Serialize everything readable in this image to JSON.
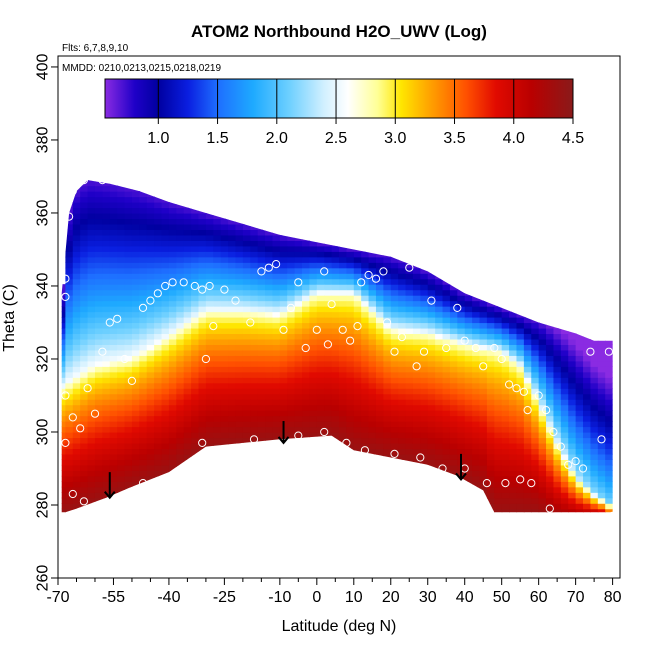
{
  "chart_data": {
    "type": "heatmap",
    "title": "ATOM2 Northbound H2O_UWV (Log)",
    "flights_label": "Flts: 6,7,8,9,10",
    "dates_label": "MMDD: 0210,0213,0215,0218,0219",
    "xlabel": "Latitude (deg N)",
    "ylabel": "Theta (C)",
    "xlim": [
      -70,
      82
    ],
    "ylim": [
      260,
      403
    ],
    "xticks": [
      -70,
      -55,
      -40,
      -25,
      -10,
      0,
      10,
      20,
      30,
      40,
      50,
      60,
      70,
      80
    ],
    "xtick_labels": [
      "-70",
      "-55",
      "-40",
      "-25",
      "-10",
      "0",
      "10",
      "20",
      "30",
      "40",
      "50",
      "60",
      "70",
      "80"
    ],
    "xminor": [
      -65,
      -60,
      -50,
      -45,
      -35,
      -30,
      -20,
      -15,
      -5,
      5,
      15,
      25,
      35,
      45,
      55,
      65,
      75
    ],
    "yticks": [
      260,
      280,
      300,
      320,
      340,
      360,
      380,
      400
    ],
    "ytick_labels": [
      "260",
      "280",
      "300",
      "320",
      "340",
      "360",
      "380",
      "400"
    ],
    "colorbar": {
      "range": [
        0.55,
        4.5
      ],
      "ticks": [
        1.0,
        1.5,
        2.0,
        2.5,
        3.0,
        3.5,
        4.0,
        4.5
      ],
      "tick_labels": [
        "1.0",
        "1.5",
        "2.0",
        "2.5",
        "3.0",
        "3.5",
        "4.0",
        "4.5"
      ],
      "stops": [
        {
          "v": 0.55,
          "c": "#8a2be2"
        },
        {
          "v": 0.8,
          "c": "#1f00c8"
        },
        {
          "v": 1.0,
          "c": "#0000a0"
        },
        {
          "v": 1.25,
          "c": "#0a1ee0"
        },
        {
          "v": 1.5,
          "c": "#1e6eff"
        },
        {
          "v": 1.8,
          "c": "#1eaaff"
        },
        {
          "v": 2.1,
          "c": "#6ccfff"
        },
        {
          "v": 2.4,
          "c": "#d2f0ff"
        },
        {
          "v": 2.6,
          "c": "#ffffff"
        },
        {
          "v": 2.85,
          "c": "#ffff96"
        },
        {
          "v": 3.05,
          "c": "#ffe600"
        },
        {
          "v": 3.3,
          "c": "#ffa000"
        },
        {
          "v": 3.6,
          "c": "#ff5000"
        },
        {
          "v": 3.85,
          "c": "#e10a00"
        },
        {
          "v": 4.15,
          "c": "#b90000"
        },
        {
          "v": 4.5,
          "c": "#8a1a1a"
        }
      ]
    },
    "top_boundary": [
      {
        "lat": -69,
        "theta": 338
      },
      {
        "lat": -67,
        "theta": 360
      },
      {
        "lat": -65,
        "theta": 366
      },
      {
        "lat": -62,
        "theta": 369
      },
      {
        "lat": -56,
        "theta": 368
      },
      {
        "lat": -48,
        "theta": 366
      },
      {
        "lat": -40,
        "theta": 363
      },
      {
        "lat": -30,
        "theta": 360
      },
      {
        "lat": -20,
        "theta": 357
      },
      {
        "lat": -10,
        "theta": 354
      },
      {
        "lat": 0,
        "theta": 352
      },
      {
        "lat": 10,
        "theta": 350
      },
      {
        "lat": 20,
        "theta": 348
      },
      {
        "lat": 30,
        "theta": 344
      },
      {
        "lat": 40,
        "theta": 338
      },
      {
        "lat": 50,
        "theta": 334
      },
      {
        "lat": 60,
        "theta": 330
      },
      {
        "lat": 70,
        "theta": 327
      },
      {
        "lat": 75,
        "theta": 325
      },
      {
        "lat": 80,
        "theta": 325
      }
    ],
    "bottom_boundary": [
      {
        "lat": 80,
        "theta": 278
      },
      {
        "lat": 62,
        "theta": 278
      },
      {
        "lat": 55,
        "theta": 278
      },
      {
        "lat": 48,
        "theta": 278
      },
      {
        "lat": 45,
        "theta": 284
      },
      {
        "lat": 38,
        "theta": 288
      },
      {
        "lat": 30,
        "theta": 291
      },
      {
        "lat": 20,
        "theta": 293
      },
      {
        "lat": 10,
        "theta": 295
      },
      {
        "lat": 4,
        "theta": 299
      },
      {
        "lat": -10,
        "theta": 298
      },
      {
        "lat": -20,
        "theta": 297
      },
      {
        "lat": -30,
        "theta": 296
      },
      {
        "lat": -40,
        "theta": 289
      },
      {
        "lat": -50,
        "theta": 285
      },
      {
        "lat": -57,
        "theta": 282
      },
      {
        "lat": -65,
        "theta": 279
      },
      {
        "lat": -68,
        "theta": 278
      },
      {
        "lat": -69,
        "theta": 278
      }
    ],
    "midline": [
      {
        "lat": -69,
        "theta": 312
      },
      {
        "lat": -60,
        "theta": 318
      },
      {
        "lat": -50,
        "theta": 320
      },
      {
        "lat": -40,
        "theta": 326
      },
      {
        "lat": -30,
        "theta": 333
      },
      {
        "lat": -20,
        "theta": 333
      },
      {
        "lat": -10,
        "theta": 332
      },
      {
        "lat": 0,
        "theta": 338
      },
      {
        "lat": 10,
        "theta": 338
      },
      {
        "lat": 20,
        "theta": 328
      },
      {
        "lat": 30,
        "theta": 327
      },
      {
        "lat": 40,
        "theta": 324
      },
      {
        "lat": 50,
        "theta": 322
      },
      {
        "lat": 55,
        "theta": 318
      },
      {
        "lat": 60,
        "theta": 308
      },
      {
        "lat": 65,
        "theta": 297
      },
      {
        "lat": 70,
        "theta": 288
      },
      {
        "lat": 75,
        "theta": 283
      },
      {
        "lat": 80,
        "theta": 280
      }
    ],
    "sample_points": [
      [
        -68,
        342
      ],
      [
        -68,
        337
      ],
      [
        -67,
        359
      ],
      [
        -66,
        366
      ],
      [
        -63,
        369
      ],
      [
        -58,
        369
      ],
      [
        -68,
        310
      ],
      [
        -66,
        304
      ],
      [
        -64,
        301
      ],
      [
        -60,
        305
      ],
      [
        -62,
        312
      ],
      [
        -58,
        322
      ],
      [
        -56,
        330
      ],
      [
        -54,
        331
      ],
      [
        -52,
        320
      ],
      [
        -50,
        314
      ],
      [
        -47,
        334
      ],
      [
        -45,
        336
      ],
      [
        -43,
        338
      ],
      [
        -41,
        340
      ],
      [
        -39,
        341
      ],
      [
        -36,
        341
      ],
      [
        -33,
        340
      ],
      [
        -31,
        339
      ],
      [
        -29,
        340
      ],
      [
        -25,
        339
      ],
      [
        -28,
        329
      ],
      [
        -30,
        320
      ],
      [
        -22,
        336
      ],
      [
        -18,
        330
      ],
      [
        -15,
        344
      ],
      [
        -13,
        345
      ],
      [
        -11,
        346
      ],
      [
        -9,
        328
      ],
      [
        -7,
        334
      ],
      [
        -5,
        341
      ],
      [
        -3,
        323
      ],
      [
        0,
        328
      ],
      [
        2,
        344
      ],
      [
        4,
        335
      ],
      [
        3,
        324
      ],
      [
        7,
        328
      ],
      [
        9,
        325
      ],
      [
        11,
        329
      ],
      [
        12,
        341
      ],
      [
        14,
        343
      ],
      [
        16,
        342
      ],
      [
        18,
        344
      ],
      [
        19,
        330
      ],
      [
        21,
        322
      ],
      [
        23,
        326
      ],
      [
        25,
        345
      ],
      [
        27,
        318
      ],
      [
        29,
        322
      ],
      [
        31,
        336
      ],
      [
        35,
        323
      ],
      [
        38,
        334
      ],
      [
        40,
        325
      ],
      [
        43,
        323
      ],
      [
        45,
        318
      ],
      [
        48,
        323
      ],
      [
        50,
        320
      ],
      [
        52,
        313
      ],
      [
        54,
        312
      ],
      [
        56,
        311
      ],
      [
        57,
        306
      ],
      [
        60,
        310
      ],
      [
        62,
        306
      ],
      [
        64,
        300
      ],
      [
        66,
        296
      ],
      [
        68,
        291
      ],
      [
        70,
        292
      ],
      [
        72,
        290
      ],
      [
        74,
        322
      ],
      [
        77,
        298
      ],
      [
        79,
        322
      ],
      [
        80,
        277
      ],
      [
        -68,
        297
      ],
      [
        -66,
        283
      ],
      [
        -63,
        281
      ],
      [
        -47,
        286
      ],
      [
        -31,
        297
      ],
      [
        -17,
        298
      ],
      [
        -5,
        299
      ],
      [
        2,
        300
      ],
      [
        8,
        297
      ],
      [
        13,
        295
      ],
      [
        21,
        294
      ],
      [
        28,
        293
      ],
      [
        34,
        290
      ],
      [
        40,
        290
      ],
      [
        46,
        286
      ],
      [
        51,
        286
      ],
      [
        55,
        287
      ],
      [
        58,
        286
      ],
      [
        63,
        279
      ]
    ],
    "arrows": [
      {
        "lat": -56,
        "theta_top": 289,
        "theta_bottom": 282
      },
      {
        "lat": -9,
        "theta_top": 303,
        "theta_bottom": 297
      },
      {
        "lat": 39,
        "theta_top": 294,
        "theta_bottom": 287
      }
    ]
  }
}
